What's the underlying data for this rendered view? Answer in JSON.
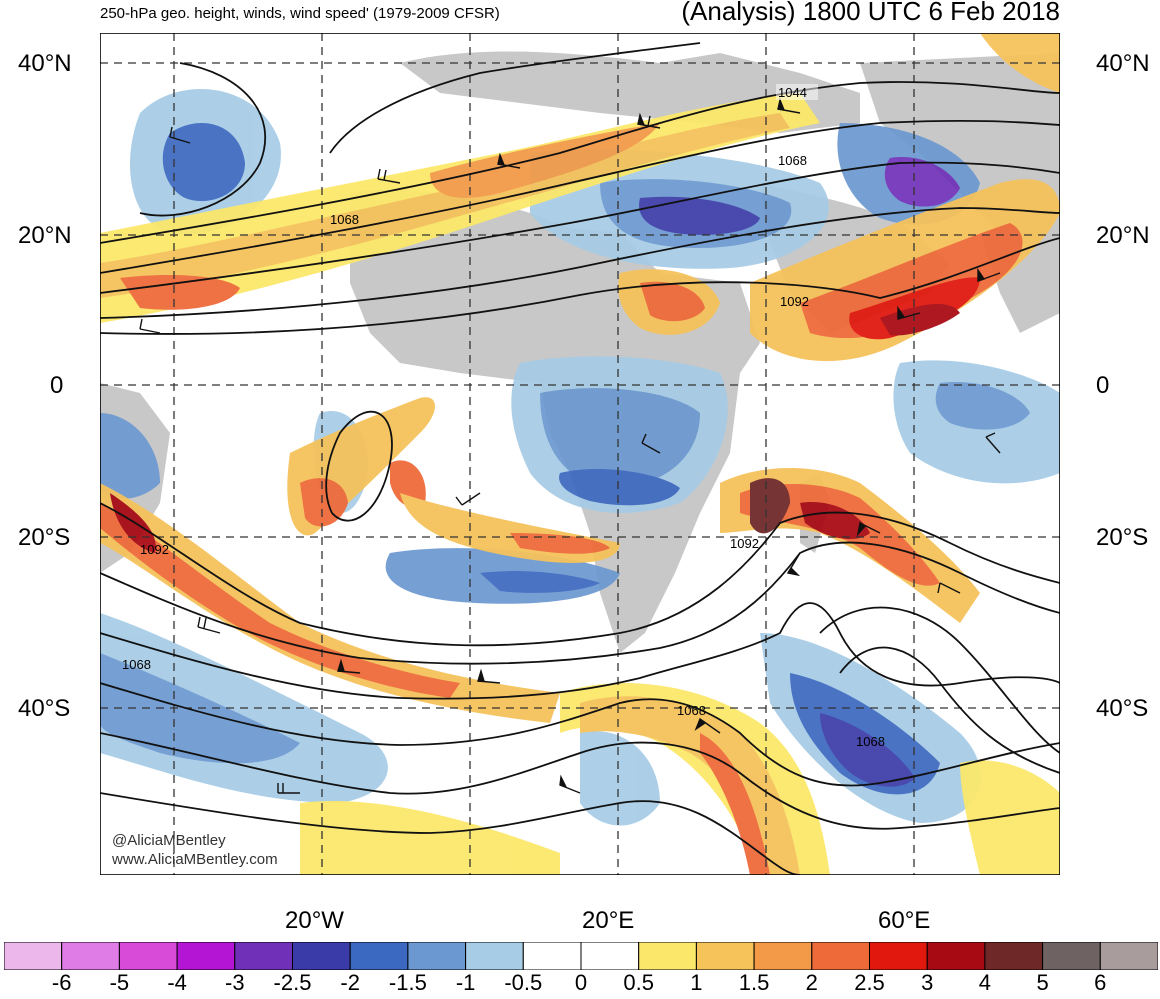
{
  "header": {
    "subtitle": "250-hPa geo. height, winds, wind speed' (1979-2009 CFSR)",
    "title": "(Analysis) 1800 UTC 6 Feb 2018"
  },
  "lat_labels_left": [
    "40°N",
    "20°N",
    "0",
    "20°S",
    "40°S"
  ],
  "lat_labels_right": [
    "40°N",
    "20°N",
    "0",
    "20°S",
    "40°S"
  ],
  "lon_labels": [
    "20°W",
    "20°E",
    "60°E"
  ],
  "contour_labels": [
    "1044",
    "1068",
    "1068",
    "1092",
    "1092",
    "1092",
    "1068",
    "1068",
    "1068"
  ],
  "credit": {
    "handle": "@AliciaMBentley",
    "url": "www.AliciaMBentley.com"
  },
  "colorbar": {
    "labels": [
      "-6",
      "-5",
      "-4",
      "-3",
      "-2.5",
      "-2",
      "-1.5",
      "-1",
      "-0.5",
      "0",
      "0.5",
      "1",
      "1.5",
      "2",
      "2.5",
      "3",
      "4",
      "5",
      "6"
    ],
    "colors": [
      "#ecb8ec",
      "#e07ce6",
      "#d84ad8",
      "#b414d4",
      "#7030b8",
      "#3a3aa8",
      "#3b68c0",
      "#6b98d0",
      "#a6cce6",
      "#ffffff",
      "#ffffff",
      "#fbe86a",
      "#f6c25a",
      "#f29a48",
      "#ee6a38",
      "#e0180e",
      "#a80a14",
      "#6e2828",
      "#6e6262",
      "#a89c9c"
    ]
  },
  "palette": {
    "land": "#c8c8c8",
    "grid": "#333333"
  }
}
